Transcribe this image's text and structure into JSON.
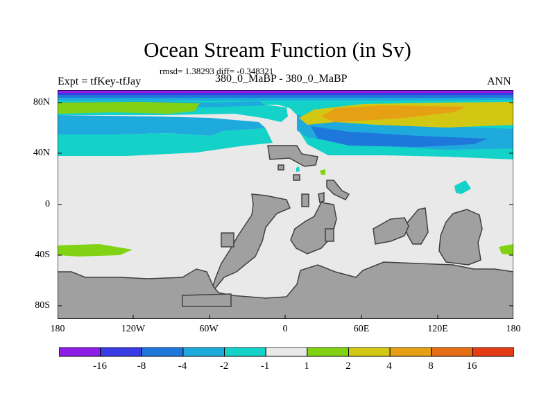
{
  "header": {
    "title": "Ocean Stream Function (in Sv)",
    "stats": "rmsd= 1.38293 diff= -0.348321",
    "left_label": "Expt = tfKey-tfJay",
    "center_label": "380_0_MaBP - 380_0_MaBP",
    "right_label": "ANN"
  },
  "axes": {
    "y_ticks": [
      {
        "label": "80N"
      },
      {
        "label": "40N"
      },
      {
        "label": "0"
      },
      {
        "label": "40S"
      },
      {
        "label": "80S"
      }
    ],
    "x_ticks": [
      {
        "label": "180"
      },
      {
        "label": "120W"
      },
      {
        "label": "60W"
      },
      {
        "label": "0"
      },
      {
        "label": "60E"
      },
      {
        "label": "120E"
      },
      {
        "label": "180"
      }
    ],
    "lat_range": [
      -90,
      90
    ],
    "lon_range": [
      -180,
      180
    ]
  },
  "colors": {
    "land": "#a0a0a0",
    "neutral": "#e9e9e9"
  },
  "colorbar": {
    "bins": [
      {
        "color": "#8e1ee6"
      },
      {
        "color": "#3b3be6"
      },
      {
        "color": "#1e78dc"
      },
      {
        "color": "#1eaadc"
      },
      {
        "color": "#14d2c8"
      },
      {
        "color": "#e9e9e9"
      },
      {
        "color": "#82d214"
      },
      {
        "color": "#d2c814"
      },
      {
        "color": "#e6a014"
      },
      {
        "color": "#e66e14"
      },
      {
        "color": "#e63c14"
      }
    ],
    "labels": [
      "-16",
      "-8",
      "-4",
      "-2",
      "-1",
      "1",
      "2",
      "4",
      "8",
      "16"
    ]
  }
}
